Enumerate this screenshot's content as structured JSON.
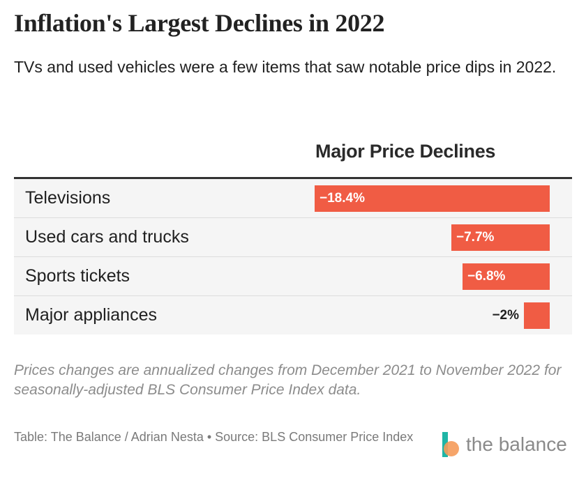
{
  "title": "Inflation's Largest Declines in 2022",
  "subtitle": "TVs and used vehicles were a few items that saw notable price dips in 2022.",
  "column_header": "Major Price Declines",
  "note": "Prices changes are annualized changes from December 2021 to November 2022 for seasonally-adjusted BLS Consumer Price Index data.",
  "source": "Table: The Balance / Adrian Nesta • Source: BLS Consumer Price Index",
  "logo_text": "the balance",
  "colors": {
    "bar": "#f05c44",
    "row_background": "#f5f5f5",
    "logo_teal": "#1fb5a6",
    "logo_orange": "#f59b5a"
  },
  "chart_data": {
    "type": "bar",
    "orientation": "horizontal",
    "categories": [
      "Televisions",
      "Used cars and trucks",
      "Sports tickets",
      "Major appliances"
    ],
    "values": [
      -18.4,
      -7.7,
      -6.8,
      -2.0
    ],
    "labels": [
      "−18.4%",
      "−7.7%",
      "−6.8%",
      "−2%"
    ],
    "xlim": [
      -18.4,
      0
    ],
    "title": "Inflation's Largest Declines in 2022",
    "column_label": "Major Price Declines",
    "grid": false,
    "legend": "none"
  }
}
